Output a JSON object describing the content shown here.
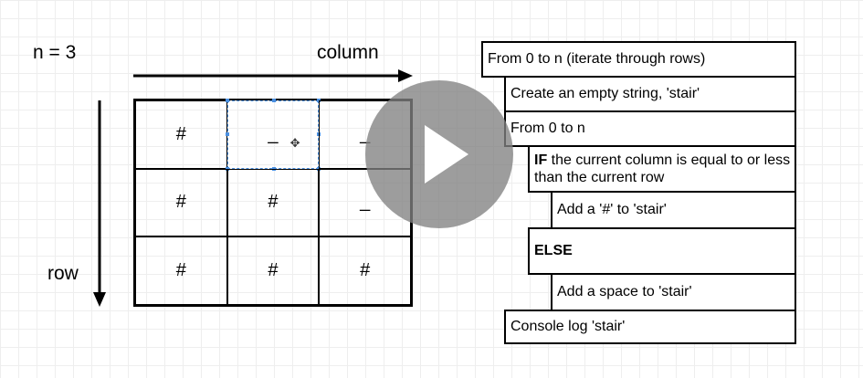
{
  "labels": {
    "n": "n = 3",
    "column": "column",
    "row": "row"
  },
  "grid": [
    [
      "#",
      "_",
      "_"
    ],
    [
      "#",
      "#",
      "_"
    ],
    [
      "#",
      "#",
      "#"
    ]
  ],
  "flow": {
    "iterate_rows": "From 0 to n (iterate through rows)",
    "create_string": "Create an empty string, 'stair'",
    "iterate_cols": "From 0 to n",
    "if_keyword": "IF",
    "if_rest": " the current column is equal to or less than the current row",
    "add_hash": "Add a '#' to 'stair'",
    "else": "ELSE",
    "add_space": "Add a space to 'stair'",
    "console_log": "Console log 'stair'"
  },
  "colors": {
    "selection": "#4a90e2",
    "play_overlay": "#828282"
  },
  "icons": {
    "move": "move-icon",
    "play": "play-icon"
  }
}
